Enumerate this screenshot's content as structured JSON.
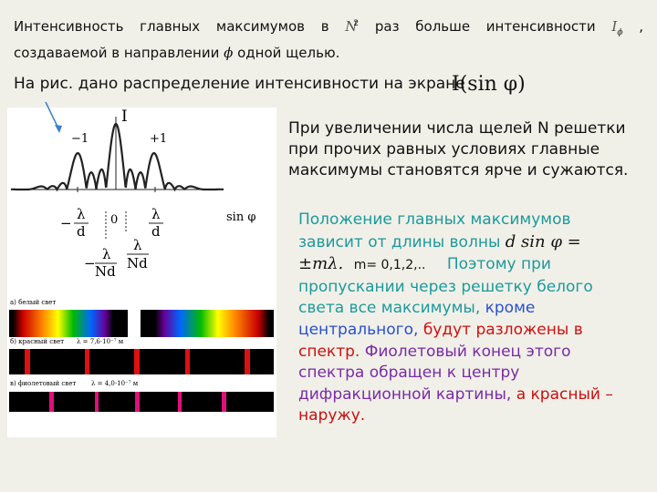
{
  "intro": {
    "text_a": "Интенсивность главных максимумов в",
    "n": "N",
    "n_power": "2",
    "text_b": "раз больше интенсивности",
    "i": "I",
    "i_sub": "ϕ",
    "text_c": ",",
    "text_d": "создаваемой в направлении",
    "phi": "ϕ",
    "text_e": "одной щелью."
  },
  "figure_caption": {
    "text": "На рис. дано распределение интенсивности на экране",
    "formula": "I(sin φ)"
  },
  "statement": "При увеличении числа щелей N решетки при прочих равных условиях главные максимумы становятся ярче и сужаются.",
  "explanation": {
    "text_a": "Положение главных максимумов зависит от длины волны",
    "formula": "d sin φ = ±mλ.",
    "orders": "m= 0,1,2,..",
    "text_b": "Поэтому при пропускании через решетку белого света все максимумы,",
    "text_c": "кроме центрального,",
    "text_d": "будут разложены в спектр.",
    "text_e": "Фиолетовый конец этого спектра обращен к центру дифракционной картины,",
    "text_f": "а красный – наружу."
  },
  "graph": {
    "y_label": "I",
    "x_label": "sin φ",
    "order_minus": "−1",
    "order_plus": "+1",
    "zero": "0",
    "neg_lambda_d": {
      "sign": "−",
      "num": "λ",
      "den": "d"
    },
    "pos_lambda_d": {
      "num": "λ",
      "den": "d"
    },
    "neg_lambda_nd": {
      "sign": "−",
      "num": "λ",
      "den": "Nd"
    },
    "pos_lambda_nd": {
      "num": "λ",
      "den": "Nd"
    }
  },
  "spectra": [
    {
      "label": "а) белый свет"
    },
    {
      "label": "б) красный свет",
      "wavelength": "λ = 7,6·10⁻⁷ м"
    },
    {
      "label": "в) фиолетовый свет",
      "wavelength": "λ = 4,0·10⁻⁷ м"
    }
  ]
}
